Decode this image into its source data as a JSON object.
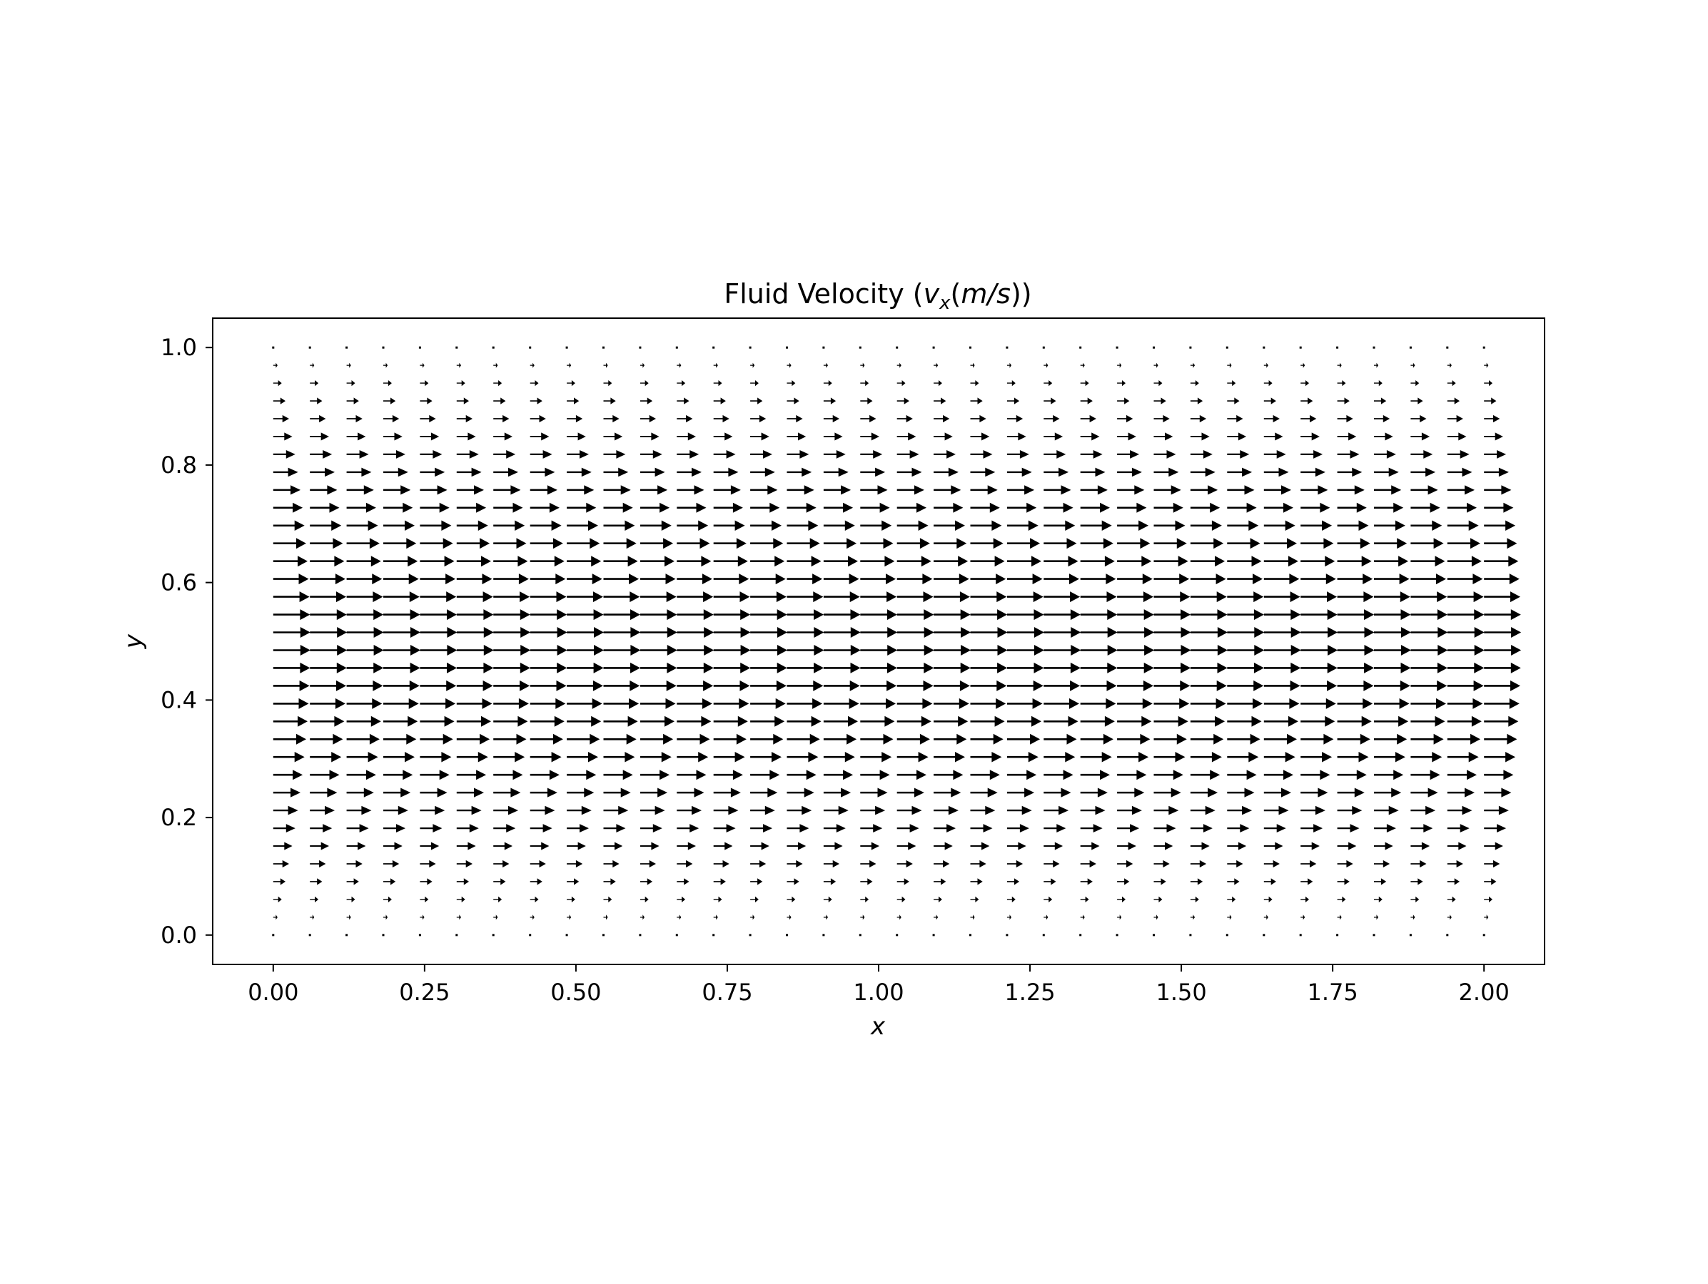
{
  "figure": {
    "title": "Fluid Velocity",
    "title_math": {
      "open": " (",
      "var": "v",
      "sub": "x",
      "unit_open": "(",
      "unit_m": "m",
      "unit_slash": "/",
      "unit_s": "s",
      "close": "))"
    }
  },
  "chart_data": {
    "type": "quiver",
    "title": "Fluid Velocity (v_x(m/s))",
    "xlabel": "x",
    "ylabel": "y",
    "xlim": [
      -0.1,
      2.1
    ],
    "ylim": [
      -0.05,
      1.05
    ],
    "xticks": [
      "0.00",
      "0.25",
      "0.50",
      "0.75",
      "1.00",
      "1.25",
      "1.50",
      "1.75",
      "2.00"
    ],
    "yticks": [
      "0.0",
      "0.2",
      "0.4",
      "0.6",
      "0.8",
      "1.0"
    ],
    "grid": false,
    "legend": "none",
    "arrow_color": "#000000",
    "x_grid": {
      "start": 0.0,
      "stop": 2.0,
      "count": 34
    },
    "y_grid": {
      "start": 0.0,
      "stop": 1.0,
      "count": 34
    },
    "vector_field": {
      "vx": "4*y*(1-y) (parabolic channel flow, max 1.0 at y=0.5)",
      "vy": 0
    }
  }
}
